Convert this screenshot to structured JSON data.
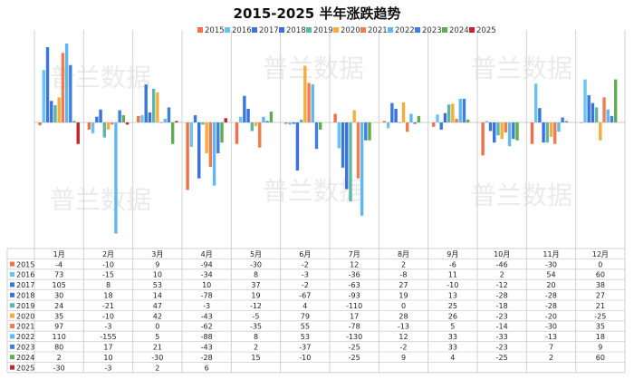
{
  "title": "2015-2025 半年涨跌趋势",
  "watermark": "普兰数据",
  "chart_data": {
    "type": "bar",
    "title": "2015-2025 半年涨跌趋势",
    "xlabel": "",
    "ylabel": "",
    "legend_position": "top-right",
    "grid": true,
    "categories": [
      "1月",
      "2月",
      "3月",
      "4月",
      "5月",
      "6月",
      "7月",
      "8月",
      "9月",
      "10月",
      "11月",
      "12月"
    ],
    "series": [
      {
        "name": "2015",
        "color": "#f0704a",
        "values": [
          -4,
          -10,
          9,
          -94,
          -30,
          -2,
          12,
          2,
          -6,
          -46,
          -30,
          0
        ]
      },
      {
        "name": "2016",
        "color": "#6dc1ee",
        "values": [
          73,
          -15,
          10,
          -34,
          8,
          -3,
          -36,
          -8,
          11,
          2,
          54,
          60
        ]
      },
      {
        "name": "2017",
        "color": "#3a78d8",
        "values": [
          105,
          8,
          53,
          10,
          37,
          -2,
          -63,
          27,
          -10,
          -12,
          20,
          38
        ]
      },
      {
        "name": "2018",
        "color": "#3c6fe0",
        "values": [
          30,
          18,
          14,
          -78,
          19,
          -67,
          -93,
          19,
          13,
          -28,
          -28,
          27
        ]
      },
      {
        "name": "2019",
        "color": "#5bb8a8",
        "values": [
          24,
          -21,
          47,
          -3,
          -12,
          4,
          -110,
          0,
          25,
          -18,
          -28,
          21
        ]
      },
      {
        "name": "2020",
        "color": "#f5ae3e",
        "values": [
          35,
          -10,
          42,
          -43,
          -5,
          79,
          17,
          28,
          26,
          -23,
          -20,
          -25
        ]
      },
      {
        "name": "2021",
        "color": "#ef7d50",
        "values": [
          97,
          -3,
          0,
          -62,
          -35,
          55,
          -78,
          -13,
          5,
          -14,
          -30,
          35
        ]
      },
      {
        "name": "2022",
        "color": "#62b7f0",
        "values": [
          110,
          -155,
          5,
          -88,
          8,
          53,
          -130,
          12,
          33,
          -33,
          -13,
          18
        ]
      },
      {
        "name": "2023",
        "color": "#3f80dc",
        "values": [
          80,
          17,
          21,
          -43,
          2,
          -37,
          -25,
          -2,
          33,
          -23,
          7,
          9
        ]
      },
      {
        "name": "2024",
        "color": "#5fad50",
        "values": [
          2,
          10,
          -30,
          -28,
          15,
          -10,
          -25,
          9,
          4,
          -25,
          2,
          60
        ]
      },
      {
        "name": "2025",
        "color": "#c0262c",
        "values": [
          -30,
          -3,
          2,
          6,
          null,
          null,
          null,
          null,
          null,
          null,
          null,
          null
        ]
      }
    ]
  }
}
